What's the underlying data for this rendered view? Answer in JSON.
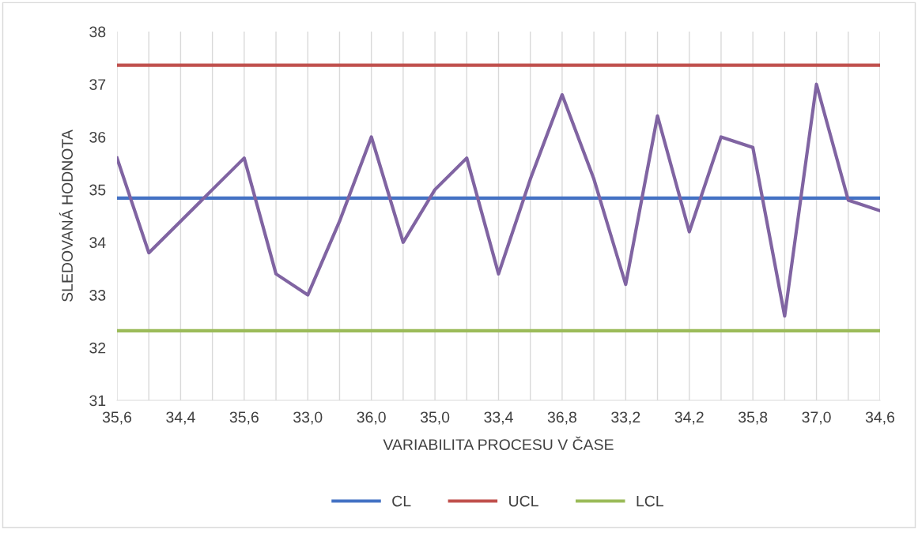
{
  "chart_data": {
    "type": "line",
    "xlabel": "VARIABILITA PROCESU V ČASE",
    "ylabel": "SLEDOVANÁ HODNOTA",
    "categories": [
      "35,6",
      null,
      "34,4",
      null,
      "35,6",
      null,
      "33,0",
      null,
      "36,0",
      null,
      "35,0",
      null,
      "33,4",
      null,
      "36,8",
      null,
      "33,2",
      null,
      "34,2",
      null,
      "35,8",
      null,
      "37,0",
      null,
      "34,6"
    ],
    "series": [
      {
        "name": "CL",
        "color": "#4472c4",
        "values": [
          34.84,
          34.84,
          34.84,
          34.84,
          34.84,
          34.84,
          34.84,
          34.84,
          34.84,
          34.84,
          34.84,
          34.84,
          34.84,
          34.84,
          34.84,
          34.84,
          34.84,
          34.84,
          34.84,
          34.84,
          34.84,
          34.84,
          34.84,
          34.84,
          34.84
        ]
      },
      {
        "name": "UCL",
        "color": "#c0504d",
        "values": [
          37.36,
          37.36,
          37.36,
          37.36,
          37.36,
          37.36,
          37.36,
          37.36,
          37.36,
          37.36,
          37.36,
          37.36,
          37.36,
          37.36,
          37.36,
          37.36,
          37.36,
          37.36,
          37.36,
          37.36,
          37.36,
          37.36,
          37.36,
          37.36,
          37.36
        ]
      },
      {
        "name": "LCL",
        "color": "#9bbb59",
        "values": [
          32.32,
          32.32,
          32.32,
          32.32,
          32.32,
          32.32,
          32.32,
          32.32,
          32.32,
          32.32,
          32.32,
          32.32,
          32.32,
          32.32,
          32.32,
          32.32,
          32.32,
          32.32,
          32.32,
          32.32,
          32.32,
          32.32,
          32.32,
          32.32,
          32.32
        ]
      },
      {
        "color": "#8064a2",
        "values": [
          35.6,
          33.8,
          34.4,
          35.0,
          35.6,
          33.4,
          33.0,
          34.4,
          36.0,
          34.0,
          35.0,
          35.6,
          33.4,
          35.2,
          36.8,
          35.2,
          33.2,
          36.4,
          34.2,
          36.0,
          35.8,
          32.6,
          37.0,
          34.8,
          34.6
        ]
      }
    ],
    "ylim": [
      31,
      38
    ],
    "yticks": [
      31,
      32,
      33,
      34,
      35,
      36,
      37,
      38
    ],
    "grid": "x",
    "legend": "bottom",
    "marker": "none",
    "line_style": "solid"
  }
}
